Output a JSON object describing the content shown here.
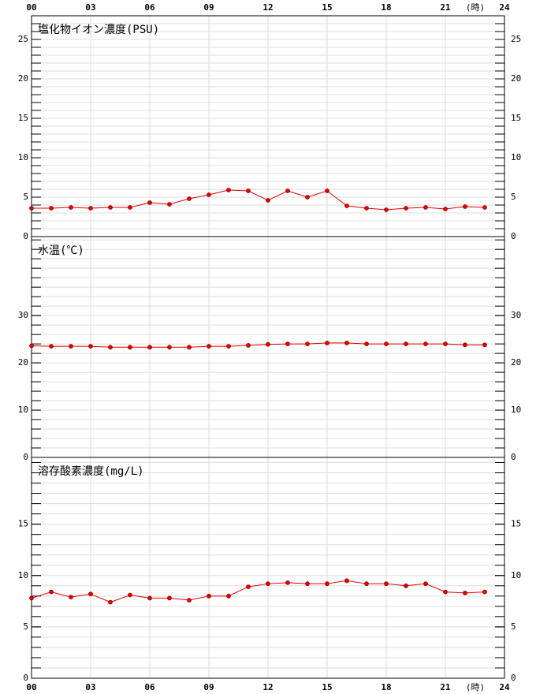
{
  "chart_data": [
    {
      "type": "line",
      "title": "塩化物イオン濃度(PSU)",
      "x_label": "(時)",
      "xtick_side": "top",
      "xlim": [
        0,
        24
      ],
      "xticks": [
        {
          "value": 0,
          "label": "00"
        },
        {
          "value": 3,
          "label": "03"
        },
        {
          "value": 6,
          "label": "06"
        },
        {
          "value": 9,
          "label": "09"
        },
        12,
        15,
        18,
        21,
        24
      ],
      "ylim": [
        0,
        28
      ],
      "yticks": [
        0,
        5,
        10,
        15,
        20,
        25
      ],
      "minor_step": 1,
      "grid": true,
      "x": [
        0,
        1,
        2,
        3,
        4,
        5,
        6,
        7,
        8,
        9,
        10,
        11,
        12,
        13,
        14,
        15,
        16,
        17,
        18,
        19,
        20,
        21,
        22,
        23
      ],
      "series": [
        {
          "color": "#e00000",
          "values": [
            3.6,
            3.6,
            3.7,
            3.6,
            3.7,
            3.7,
            4.3,
            4.1,
            4.8,
            5.3,
            5.9,
            5.8,
            4.6,
            5.8,
            5.0,
            5.8,
            3.9,
            3.6,
            3.4,
            3.6,
            3.7,
            3.5,
            3.8,
            3.7
          ]
        }
      ]
    },
    {
      "type": "line",
      "title": "水温(℃)",
      "xtick_side": "none",
      "xlim": [
        0,
        24
      ],
      "xticks": [
        {
          "value": 0,
          "label": "00"
        },
        {
          "value": 3,
          "label": "03"
        },
        {
          "value": 6,
          "label": "06"
        },
        {
          "value": 9,
          "label": "09"
        },
        12,
        15,
        18,
        21,
        24
      ],
      "ylim": [
        0,
        46.7
      ],
      "yticks": [
        0,
        10,
        20,
        30
      ],
      "minor_step": 2,
      "grid": true,
      "x": [
        0,
        1,
        2,
        3,
        4,
        5,
        6,
        7,
        8,
        9,
        10,
        11,
        12,
        13,
        14,
        15,
        16,
        17,
        18,
        19,
        20,
        21,
        22,
        23
      ],
      "series": [
        {
          "color": "#e00000",
          "values": [
            23.6,
            23.5,
            23.5,
            23.5,
            23.3,
            23.3,
            23.3,
            23.3,
            23.3,
            23.5,
            23.5,
            23.7,
            23.9,
            24.0,
            24.0,
            24.2,
            24.2,
            24.0,
            24.0,
            24.0,
            24.0,
            24.0,
            23.8,
            23.8
          ]
        }
      ]
    },
    {
      "type": "line",
      "title": "溶存酸素濃度(mg/L)",
      "x_label": "(時)",
      "xtick_side": "bottom",
      "xlim": [
        0,
        24
      ],
      "xticks": [
        {
          "value": 0,
          "label": "00"
        },
        {
          "value": 3,
          "label": "03"
        },
        {
          "value": 6,
          "label": "06"
        },
        {
          "value": 9,
          "label": "09"
        },
        12,
        15,
        18,
        21,
        24
      ],
      "ylim": [
        0,
        21.5
      ],
      "yticks": [
        0,
        5,
        10,
        15
      ],
      "minor_step": 1,
      "grid": true,
      "x": [
        0,
        1,
        2,
        3,
        4,
        5,
        6,
        7,
        8,
        9,
        10,
        11,
        12,
        13,
        14,
        15,
        16,
        17,
        18,
        19,
        20,
        21,
        22,
        23
      ],
      "series": [
        {
          "color": "#e00000",
          "values": [
            7.8,
            8.4,
            7.9,
            8.2,
            7.4,
            8.1,
            7.8,
            7.8,
            7.6,
            8.0,
            8.0,
            8.9,
            9.2,
            9.3,
            9.2,
            9.2,
            9.5,
            9.2,
            9.2,
            9.0,
            9.2,
            8.4,
            8.3,
            8.4
          ]
        }
      ]
    }
  ]
}
